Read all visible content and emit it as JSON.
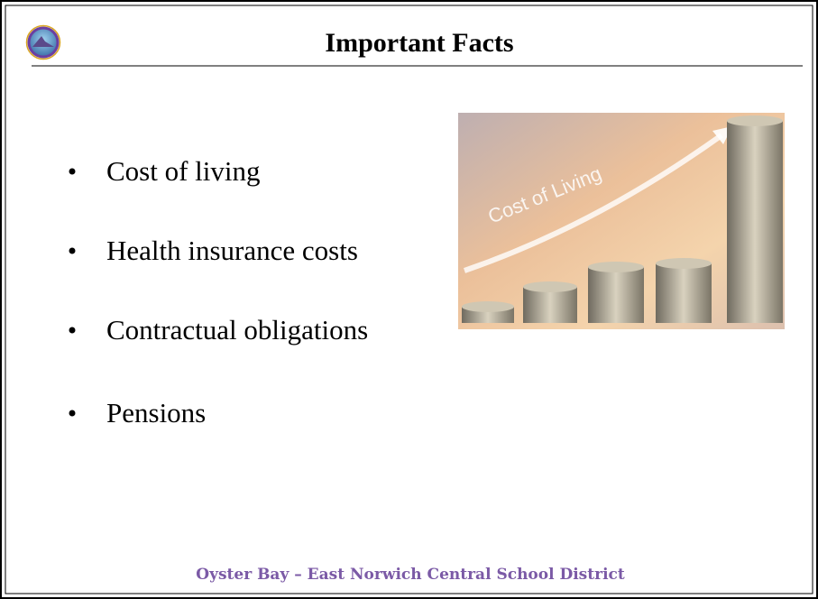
{
  "header": {
    "title": "Important Facts"
  },
  "bullets": [
    "Cost of living",
    "Health insurance costs",
    "Contractual obligations",
    "Pensions"
  ],
  "image": {
    "text": "Cost of Living"
  },
  "footer": {
    "text": "Oyster Bay – East Norwich Central School District"
  }
}
